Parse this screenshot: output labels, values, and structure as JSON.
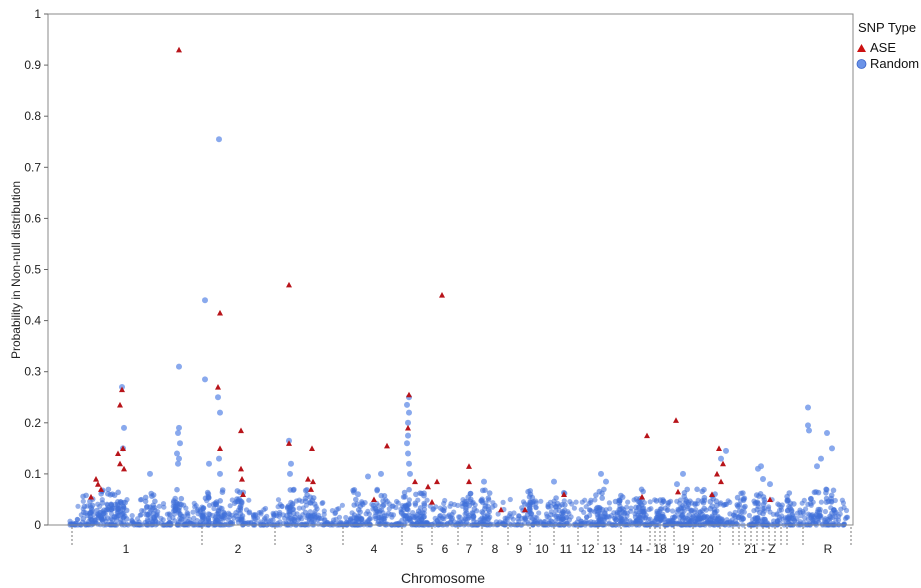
{
  "chart_data": {
    "type": "scatter",
    "xlabel": "Chromosome",
    "ylabel": "Probability in Non-null distribution",
    "ylim": [
      0,
      1
    ],
    "yticks": [
      "0",
      "0.1",
      "0.2",
      "0.3",
      "0.4",
      "0.5",
      "0.6",
      "0.7",
      "0.8",
      "0.9",
      "1"
    ],
    "grid": false,
    "legend": {
      "title": "SNP Type",
      "placement": "right",
      "items": [
        {
          "name": "ASE",
          "color": "#cc1111",
          "marker": "triangle"
        },
        {
          "name": "Random",
          "color": "#4b79e0",
          "marker": "circle"
        }
      ]
    },
    "chromosomes": [
      "1",
      "2",
      "3",
      "4",
      "5",
      "6",
      "7",
      "8",
      "9",
      "10",
      "11",
      "12",
      "13",
      "14 - 18",
      "19",
      "20",
      "21 - Z",
      "R"
    ],
    "series": [
      {
        "name": "ASE",
        "points": [
          {
            "chrom": "1",
            "y": 0.055
          },
          {
            "chrom": "1",
            "y": 0.09
          },
          {
            "chrom": "1",
            "y": 0.08
          },
          {
            "chrom": "1",
            "y": 0.07
          },
          {
            "chrom": "1",
            "y": 0.14
          },
          {
            "chrom": "1",
            "y": 0.12
          },
          {
            "chrom": "1",
            "y": 0.15
          },
          {
            "chrom": "1",
            "y": 0.235
          },
          {
            "chrom": "1",
            "y": 0.265
          },
          {
            "chrom": "1",
            "y": 0.11
          },
          {
            "chrom": "1",
            "y": 0.93
          },
          {
            "chrom": "2",
            "y": 0.415
          },
          {
            "chrom": "2",
            "y": 0.27
          },
          {
            "chrom": "2",
            "y": 0.15
          },
          {
            "chrom": "2",
            "y": 0.185
          },
          {
            "chrom": "2",
            "y": 0.11
          },
          {
            "chrom": "2",
            "y": 0.09
          },
          {
            "chrom": "2",
            "y": 0.06
          },
          {
            "chrom": "3",
            "y": 0.47
          },
          {
            "chrom": "3",
            "y": 0.16
          },
          {
            "chrom": "3",
            "y": 0.15
          },
          {
            "chrom": "3",
            "y": 0.09
          },
          {
            "chrom": "3",
            "y": 0.085
          },
          {
            "chrom": "3",
            "y": 0.07
          },
          {
            "chrom": "4",
            "y": 0.155
          },
          {
            "chrom": "4",
            "y": 0.05
          },
          {
            "chrom": "5",
            "y": 0.255
          },
          {
            "chrom": "5",
            "y": 0.19
          },
          {
            "chrom": "5",
            "y": 0.085
          },
          {
            "chrom": "5",
            "y": 0.075
          },
          {
            "chrom": "5",
            "y": 0.045
          },
          {
            "chrom": "6",
            "y": 0.45
          },
          {
            "chrom": "6",
            "y": 0.085
          },
          {
            "chrom": "7",
            "y": 0.115
          },
          {
            "chrom": "7",
            "y": 0.085
          },
          {
            "chrom": "8",
            "y": 0.03
          },
          {
            "chrom": "9",
            "y": 0.03
          },
          {
            "chrom": "11",
            "y": 0.06
          },
          {
            "chrom": "14 - 18",
            "y": 0.175
          },
          {
            "chrom": "14 - 18",
            "y": 0.055
          },
          {
            "chrom": "19",
            "y": 0.205
          },
          {
            "chrom": "19",
            "y": 0.065
          },
          {
            "chrom": "20",
            "y": 0.15
          },
          {
            "chrom": "20",
            "y": 0.12
          },
          {
            "chrom": "20",
            "y": 0.1
          },
          {
            "chrom": "20",
            "y": 0.085
          },
          {
            "chrom": "20",
            "y": 0.06
          },
          {
            "chrom": "21 - Z",
            "y": 0.05
          }
        ]
      },
      {
        "name": "Random",
        "points": [
          {
            "chrom": "1",
            "y": 0.27
          },
          {
            "chrom": "1",
            "y": 0.19
          },
          {
            "chrom": "1",
            "y": 0.15
          },
          {
            "chrom": "1",
            "y": 0.1
          },
          {
            "chrom": "1",
            "y": 0.31
          },
          {
            "chrom": "1",
            "y": 0.19
          },
          {
            "chrom": "1",
            "y": 0.18
          },
          {
            "chrom": "1",
            "y": 0.16
          },
          {
            "chrom": "1",
            "y": 0.14
          },
          {
            "chrom": "1",
            "y": 0.13
          },
          {
            "chrom": "1",
            "y": 0.12
          },
          {
            "chrom": "2",
            "y": 0.755
          },
          {
            "chrom": "2",
            "y": 0.44
          },
          {
            "chrom": "2",
            "y": 0.285
          },
          {
            "chrom": "2",
            "y": 0.25
          },
          {
            "chrom": "2",
            "y": 0.22
          },
          {
            "chrom": "2",
            "y": 0.13
          },
          {
            "chrom": "2",
            "y": 0.12
          },
          {
            "chrom": "2",
            "y": 0.1
          },
          {
            "chrom": "3",
            "y": 0.165
          },
          {
            "chrom": "3",
            "y": 0.12
          },
          {
            "chrom": "3",
            "y": 0.1
          },
          {
            "chrom": "4",
            "y": 0.1
          },
          {
            "chrom": "4",
            "y": 0.095
          },
          {
            "chrom": "4",
            "y": 0.06
          },
          {
            "chrom": "5",
            "y": 0.25
          },
          {
            "chrom": "5",
            "y": 0.235
          },
          {
            "chrom": "5",
            "y": 0.22
          },
          {
            "chrom": "5",
            "y": 0.2
          },
          {
            "chrom": "5",
            "y": 0.175
          },
          {
            "chrom": "5",
            "y": 0.16
          },
          {
            "chrom": "5",
            "y": 0.14
          },
          {
            "chrom": "5",
            "y": 0.12
          },
          {
            "chrom": "5",
            "y": 0.1
          },
          {
            "chrom": "8",
            "y": 0.085
          },
          {
            "chrom": "11",
            "y": 0.085
          },
          {
            "chrom": "13",
            "y": 0.1
          },
          {
            "chrom": "13",
            "y": 0.085
          },
          {
            "chrom": "19",
            "y": 0.1
          },
          {
            "chrom": "19",
            "y": 0.08
          },
          {
            "chrom": "20",
            "y": 0.145
          },
          {
            "chrom": "20",
            "y": 0.13
          },
          {
            "chrom": "21 - Z",
            "y": 0.115
          },
          {
            "chrom": "21 - Z",
            "y": 0.11
          },
          {
            "chrom": "21 - Z",
            "y": 0.09
          },
          {
            "chrom": "21 - Z",
            "y": 0.08
          },
          {
            "chrom": "R",
            "y": 0.23
          },
          {
            "chrom": "R",
            "y": 0.195
          },
          {
            "chrom": "R",
            "y": 0.185
          },
          {
            "chrom": "R",
            "y": 0.18
          },
          {
            "chrom": "R",
            "y": 0.15
          },
          {
            "chrom": "R",
            "y": 0.13
          },
          {
            "chrom": "R",
            "y": 0.115
          }
        ]
      }
    ]
  }
}
